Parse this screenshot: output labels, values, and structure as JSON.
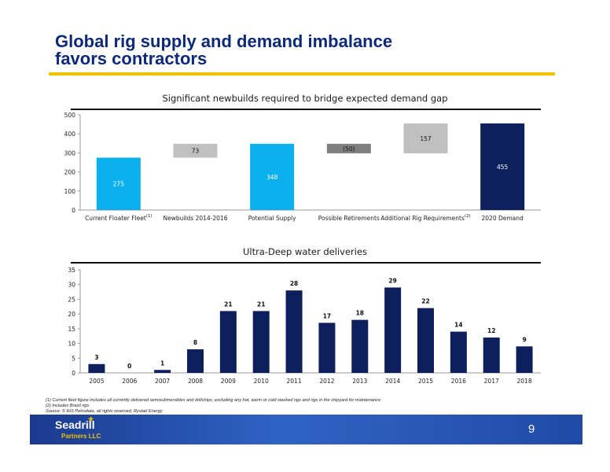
{
  "slide": {
    "title_line1": "Global rig supply and demand imbalance",
    "title_line2": "favors contractors",
    "page_number": "9",
    "footnotes": [
      "(1) Current fleet figure includes all currently delivered semisubmersibles and drillships, excluding any hot, warm or cold stacked rigs and rigs in the shipyard for maintenance",
      "(2) Includes Brazil rigs",
      "Source: © IHS Petrodata, all rights reserved, Rystad Energy"
    ],
    "logo_text": "Seadrill",
    "logo_sub": "Partners LLC"
  },
  "colors": {
    "navy": "#0d1f5c",
    "cyan": "#0db0ee",
    "light_gray": "#c0c0c0",
    "dark_gray": "#7f7f7f",
    "gold": "#f2c200"
  },
  "chart_data": [
    {
      "type": "bar",
      "subtype": "waterfall",
      "title": "Significant newbuilds required to bridge expected demand gap",
      "categories": [
        "Current Floater Fleet",
        "Newbuilds 2014-2016",
        "Potential Supply",
        "Possible Retirements",
        "Additional Rig Requirements",
        "2020 Demand"
      ],
      "category_superscripts": [
        "(1)",
        "",
        "",
        "",
        "(2)",
        ""
      ],
      "values": [
        275,
        73,
        348,
        -50,
        157,
        455
      ],
      "value_labels": [
        "275",
        "73",
        "348",
        "(50)",
        "157",
        "455"
      ],
      "bar_kinds": [
        "total",
        "delta",
        "total",
        "delta",
        "delta",
        "total"
      ],
      "bar_colors": [
        "#0db0ee",
        "#c0c0c0",
        "#0db0ee",
        "#7f7f7f",
        "#c0c0c0",
        "#0d1f5c"
      ],
      "ylim": [
        0,
        500
      ],
      "yticks": [
        "0",
        "100",
        "200",
        "300",
        "400",
        "500"
      ]
    },
    {
      "type": "bar",
      "title": "Ultra-Deep water deliveries",
      "categories": [
        "2005",
        "2006",
        "2007",
        "2008",
        "2009",
        "2010",
        "2011",
        "2012",
        "2013",
        "2014",
        "2015",
        "2016",
        "2017",
        "2018"
      ],
      "values": [
        3,
        0,
        1,
        8,
        21,
        21,
        28,
        17,
        18,
        29,
        22,
        14,
        12,
        9
      ],
      "ylim": [
        0,
        35
      ],
      "yticks": [
        "0",
        "5",
        "10",
        "15",
        "20",
        "25",
        "30",
        "35"
      ],
      "bar_color": "#0d1f5c"
    }
  ]
}
